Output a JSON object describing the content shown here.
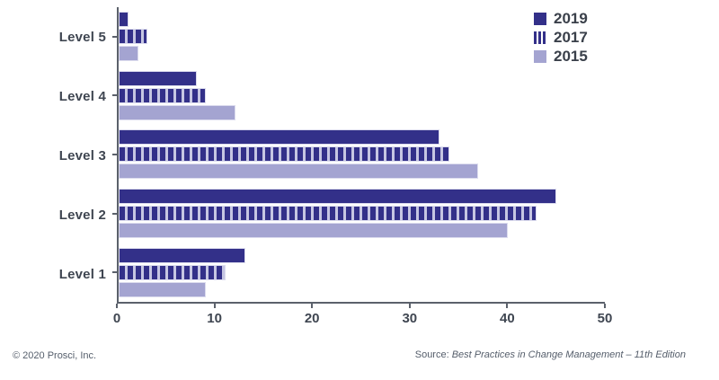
{
  "chart_data": {
    "type": "bar",
    "orientation": "horizontal",
    "title": "",
    "xlabel": "",
    "ylabel": "",
    "categories": [
      "Level 5",
      "Level 4",
      "Level 3",
      "Level 2",
      "Level 1"
    ],
    "series": [
      {
        "name": "2019",
        "pattern": "solid",
        "color": "#333089",
        "values": [
          1,
          8,
          33,
          45,
          13
        ]
      },
      {
        "name": "2017",
        "pattern": "striped",
        "color": "#333089",
        "stripe_gap_color": "#c6c6e2",
        "values": [
          3,
          9,
          34,
          43,
          11
        ]
      },
      {
        "name": "2015",
        "pattern": "solid",
        "color": "#a4a4d1",
        "values": [
          2,
          12,
          37,
          40,
          9
        ]
      }
    ],
    "xlim": [
      0,
      50
    ],
    "xticks": [
      0,
      10,
      20,
      30,
      40,
      50
    ],
    "grid": false,
    "legend_position": "top-right"
  },
  "footer": {
    "copyright": "© 2020 Prosci, Inc.",
    "source_prefix": "Source: ",
    "source_text": "Best Practices in Change Management – 11th Edition"
  },
  "colors": {
    "axis": "#5b616b",
    "tick_text": "#3f4651",
    "legend_text": "#3a404a",
    "footer_text": "#555e6b",
    "bar_border": "#dcdcee",
    "background": "#ffffff"
  }
}
